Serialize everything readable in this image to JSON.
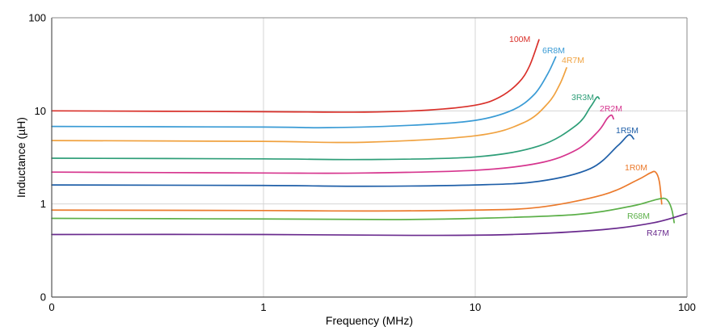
{
  "chart_data": {
    "type": "line",
    "xlabel": "Frequency (MHz)",
    "ylabel": "Inductance (µH)",
    "x_scale": "log",
    "y_scale": "log",
    "xlim": [
      0.1,
      100
    ],
    "ylim": [
      0.1,
      100
    ],
    "grid": true,
    "x_ticks": [
      {
        "value": 0.1,
        "label": "0"
      },
      {
        "value": 1,
        "label": "1"
      },
      {
        "value": 10,
        "label": "10"
      },
      {
        "value": 100,
        "label": "100"
      }
    ],
    "y_ticks": [
      {
        "value": 0.1,
        "label": "0"
      },
      {
        "value": 1,
        "label": "1"
      },
      {
        "value": 10,
        "label": "10"
      },
      {
        "value": 100,
        "label": "100"
      }
    ],
    "series": [
      {
        "name": "100M",
        "color": "#d9302a",
        "points": [
          [
            0.1,
            10
          ],
          [
            1,
            9.8
          ],
          [
            3,
            9.7
          ],
          [
            6,
            10.2
          ],
          [
            10,
            11.5
          ],
          [
            13,
            14
          ],
          [
            16,
            20
          ],
          [
            18,
            30
          ],
          [
            20,
            58
          ]
        ]
      },
      {
        "name": "6R8M",
        "color": "#3a9bd5",
        "points": [
          [
            0.1,
            6.8
          ],
          [
            1,
            6.7
          ],
          [
            2,
            6.6
          ],
          [
            5,
            7
          ],
          [
            10,
            7.9
          ],
          [
            15,
            10.2
          ],
          [
            19,
            15
          ],
          [
            22,
            25
          ],
          [
            24,
            38
          ]
        ]
      },
      {
        "name": "4R7M",
        "color": "#f0a240",
        "points": [
          [
            0.1,
            4.8
          ],
          [
            1,
            4.7
          ],
          [
            3,
            4.6
          ],
          [
            10,
            5.4
          ],
          [
            17,
            7.5
          ],
          [
            22,
            12
          ],
          [
            25,
            19
          ],
          [
            27,
            29
          ]
        ]
      },
      {
        "name": "3R3M",
        "color": "#2e9e78",
        "points": [
          [
            0.1,
            3.1
          ],
          [
            1,
            3.05
          ],
          [
            3,
            3.0
          ],
          [
            10,
            3.2
          ],
          [
            20,
            4.2
          ],
          [
            30,
            7
          ],
          [
            35,
            11
          ],
          [
            37.5,
            14
          ],
          [
            38.5,
            13.5
          ]
        ]
      },
      {
        "name": "2R2M",
        "color": "#d6358e",
        "points": [
          [
            0.1,
            2.2
          ],
          [
            1,
            2.15
          ],
          [
            3,
            2.15
          ],
          [
            10,
            2.3
          ],
          [
            20,
            2.75
          ],
          [
            30,
            3.8
          ],
          [
            38,
            6
          ],
          [
            42,
            8.3
          ],
          [
            44,
            9
          ],
          [
            45,
            8.2
          ]
        ]
      },
      {
        "name": "1R5M",
        "color": "#1f5fa8",
        "points": [
          [
            0.1,
            1.6
          ],
          [
            1,
            1.58
          ],
          [
            3,
            1.55
          ],
          [
            10,
            1.6
          ],
          [
            20,
            1.75
          ],
          [
            35,
            2.4
          ],
          [
            47,
            4.2
          ],
          [
            53,
            5.5
          ],
          [
            56,
            5
          ]
        ]
      },
      {
        "name": "1R0M",
        "color": "#eb7a2c",
        "points": [
          [
            0.1,
            0.86
          ],
          [
            1,
            0.85
          ],
          [
            3,
            0.84
          ],
          [
            10,
            0.86
          ],
          [
            20,
            0.92
          ],
          [
            40,
            1.25
          ],
          [
            58,
            1.8
          ],
          [
            67,
            2.15
          ],
          [
            71,
            2.2
          ],
          [
            74,
            1.75
          ],
          [
            76,
            1
          ]
        ]
      },
      {
        "name": "R68M",
        "color": "#5db04a",
        "points": [
          [
            0.1,
            0.7
          ],
          [
            1,
            0.69
          ],
          [
            4,
            0.68
          ],
          [
            10,
            0.7
          ],
          [
            30,
            0.77
          ],
          [
            55,
            0.95
          ],
          [
            70,
            1.1
          ],
          [
            78,
            1.15
          ],
          [
            82,
            1.05
          ],
          [
            85,
            0.85
          ],
          [
            87,
            0.63
          ]
        ]
      },
      {
        "name": "R47M",
        "color": "#6a2b8e",
        "points": [
          [
            0.1,
            0.47
          ],
          [
            1,
            0.47
          ],
          [
            5,
            0.46
          ],
          [
            15,
            0.47
          ],
          [
            40,
            0.53
          ],
          [
            70,
            0.63
          ],
          [
            100,
            0.79
          ]
        ]
      }
    ]
  }
}
